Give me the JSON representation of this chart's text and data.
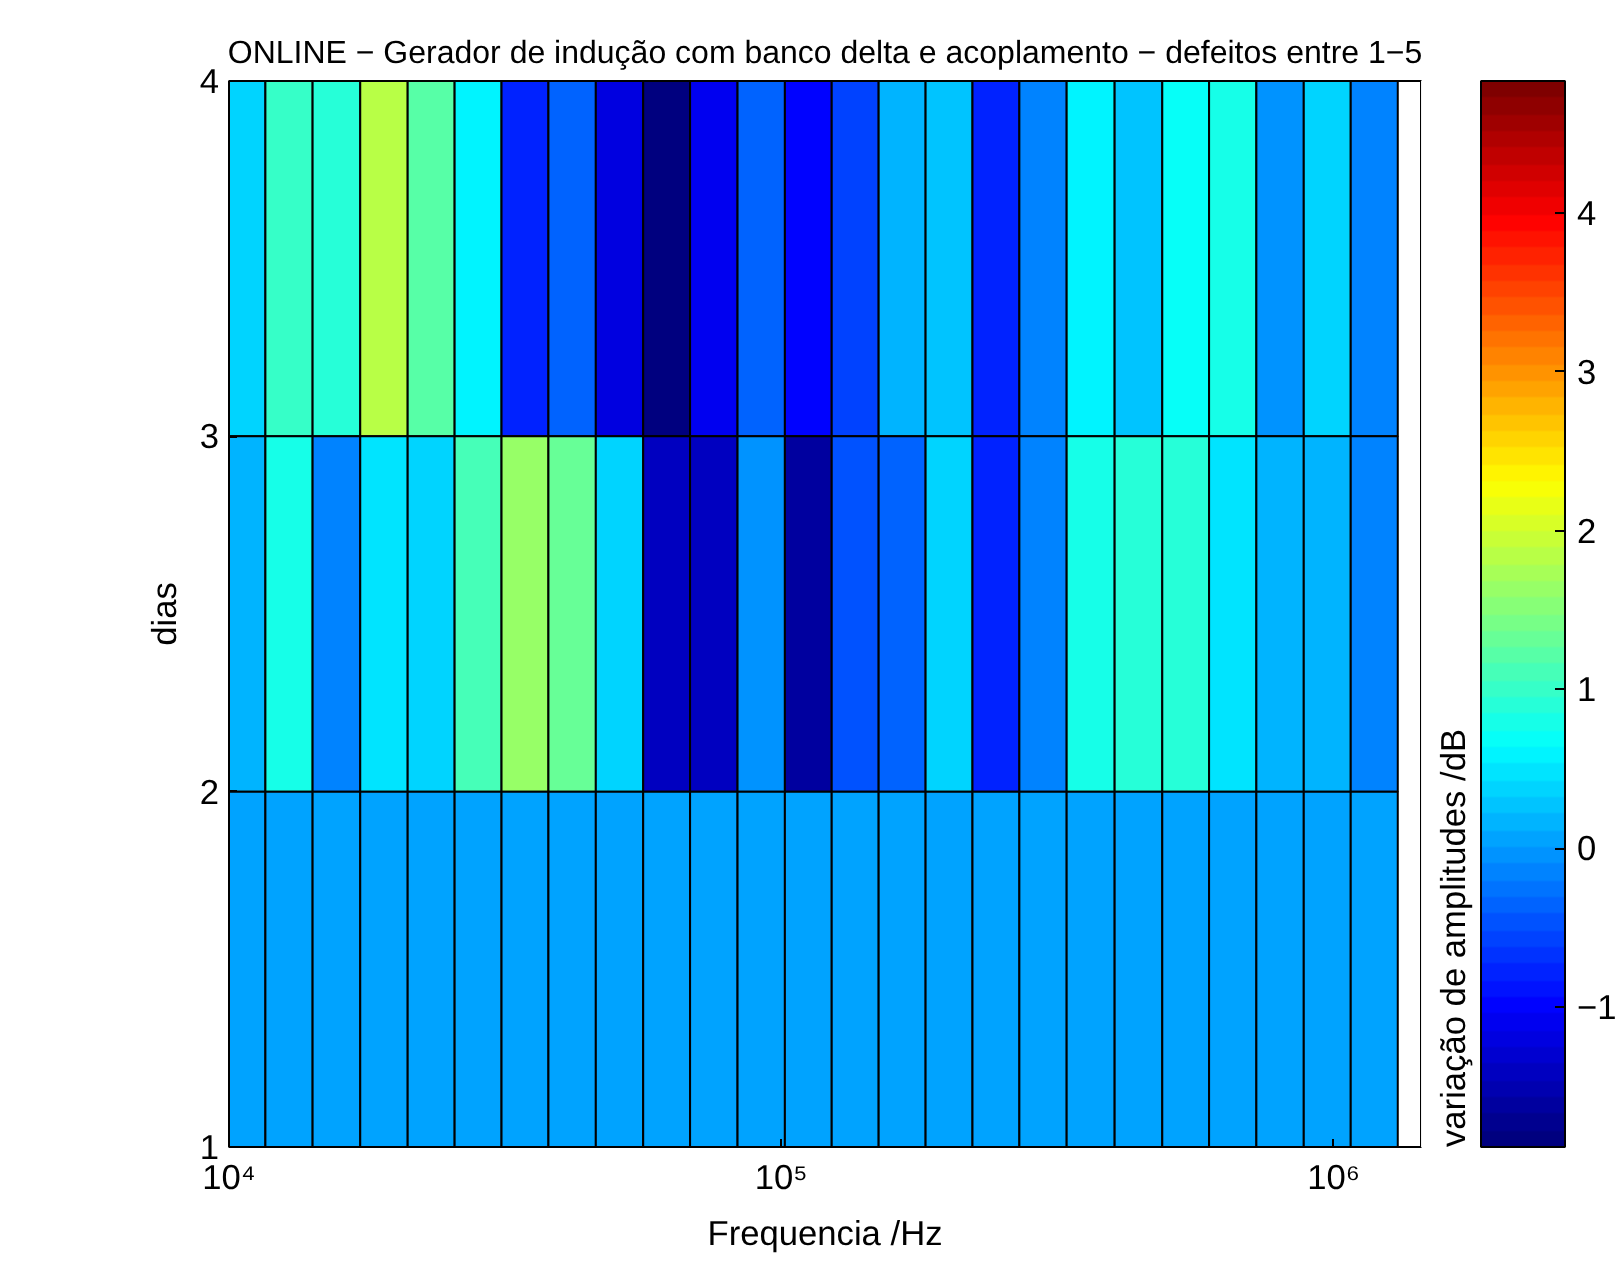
{
  "chart_data": {
    "type": "heatmap",
    "title": "ONLINE − Gerador de indução com banco delta e acoplamento − defeitos entre 1−5",
    "xlabel": "Frequencia /Hz",
    "ylabel": "dias",
    "clabel": "variação de amplitudes /dB",
    "log": "x",
    "x": [
      10550,
      12840,
      15640,
      19100,
      23230,
      28250,
      34350,
      41770,
      51000,
      62000,
      75400,
      92100,
      111900,
      136100,
      165500,
      201300,
      244700,
      297600,
      363000,
      444000,
      540000,
      656000,
      801000,
      974000,
      1185000
    ],
    "xlim": [
      10000,
      1440000
    ],
    "xticks": [
      {
        "value": 10000,
        "label": "10⁴"
      },
      {
        "value": 100000,
        "label": "10⁵"
      },
      {
        "value": 1000000,
        "label": "10⁶"
      }
    ],
    "ylim": [
      1,
      4
    ],
    "yticks": [
      1,
      2,
      3,
      4
    ],
    "cells": [
      [
        0.42,
        0.97,
        0.95,
        1.79,
        1.19,
        0.6,
        -0.82,
        -0.37,
        -1.16,
        -1.85,
        -1.05,
        -0.37,
        -0.95,
        -0.6,
        0.13,
        0.3,
        -0.82,
        -0.15,
        0.6,
        0.3,
        0.64,
        0.8,
        -0.03,
        0.42,
        -0.15
      ],
      [
        0.19,
        0.75,
        -0.15,
        0.52,
        0.42,
        1.09,
        1.64,
        1.31,
        0.42,
        -1.38,
        -1.38,
        -0.03,
        -1.6,
        -0.48,
        -0.37,
        0.42,
        -0.82,
        -0.2,
        0.75,
        0.86,
        0.86,
        0.52,
        0.19,
        0.19,
        -0.15
      ],
      [
        0.1,
        0.1,
        0.1,
        0.1,
        0.1,
        0.1,
        0.1,
        0.1,
        0.1,
        0.1,
        0.1,
        0.1,
        0.1,
        0.1,
        0.1,
        0.1,
        0.1,
        0.1,
        0.1,
        0.1,
        0.1,
        0.1,
        0.1,
        0.1,
        0.1
      ]
    ],
    "clim": [
      -1.88,
      4.83
    ],
    "cticks": [
      -1,
      0,
      1,
      2,
      3,
      4
    ],
    "grid": false
  }
}
